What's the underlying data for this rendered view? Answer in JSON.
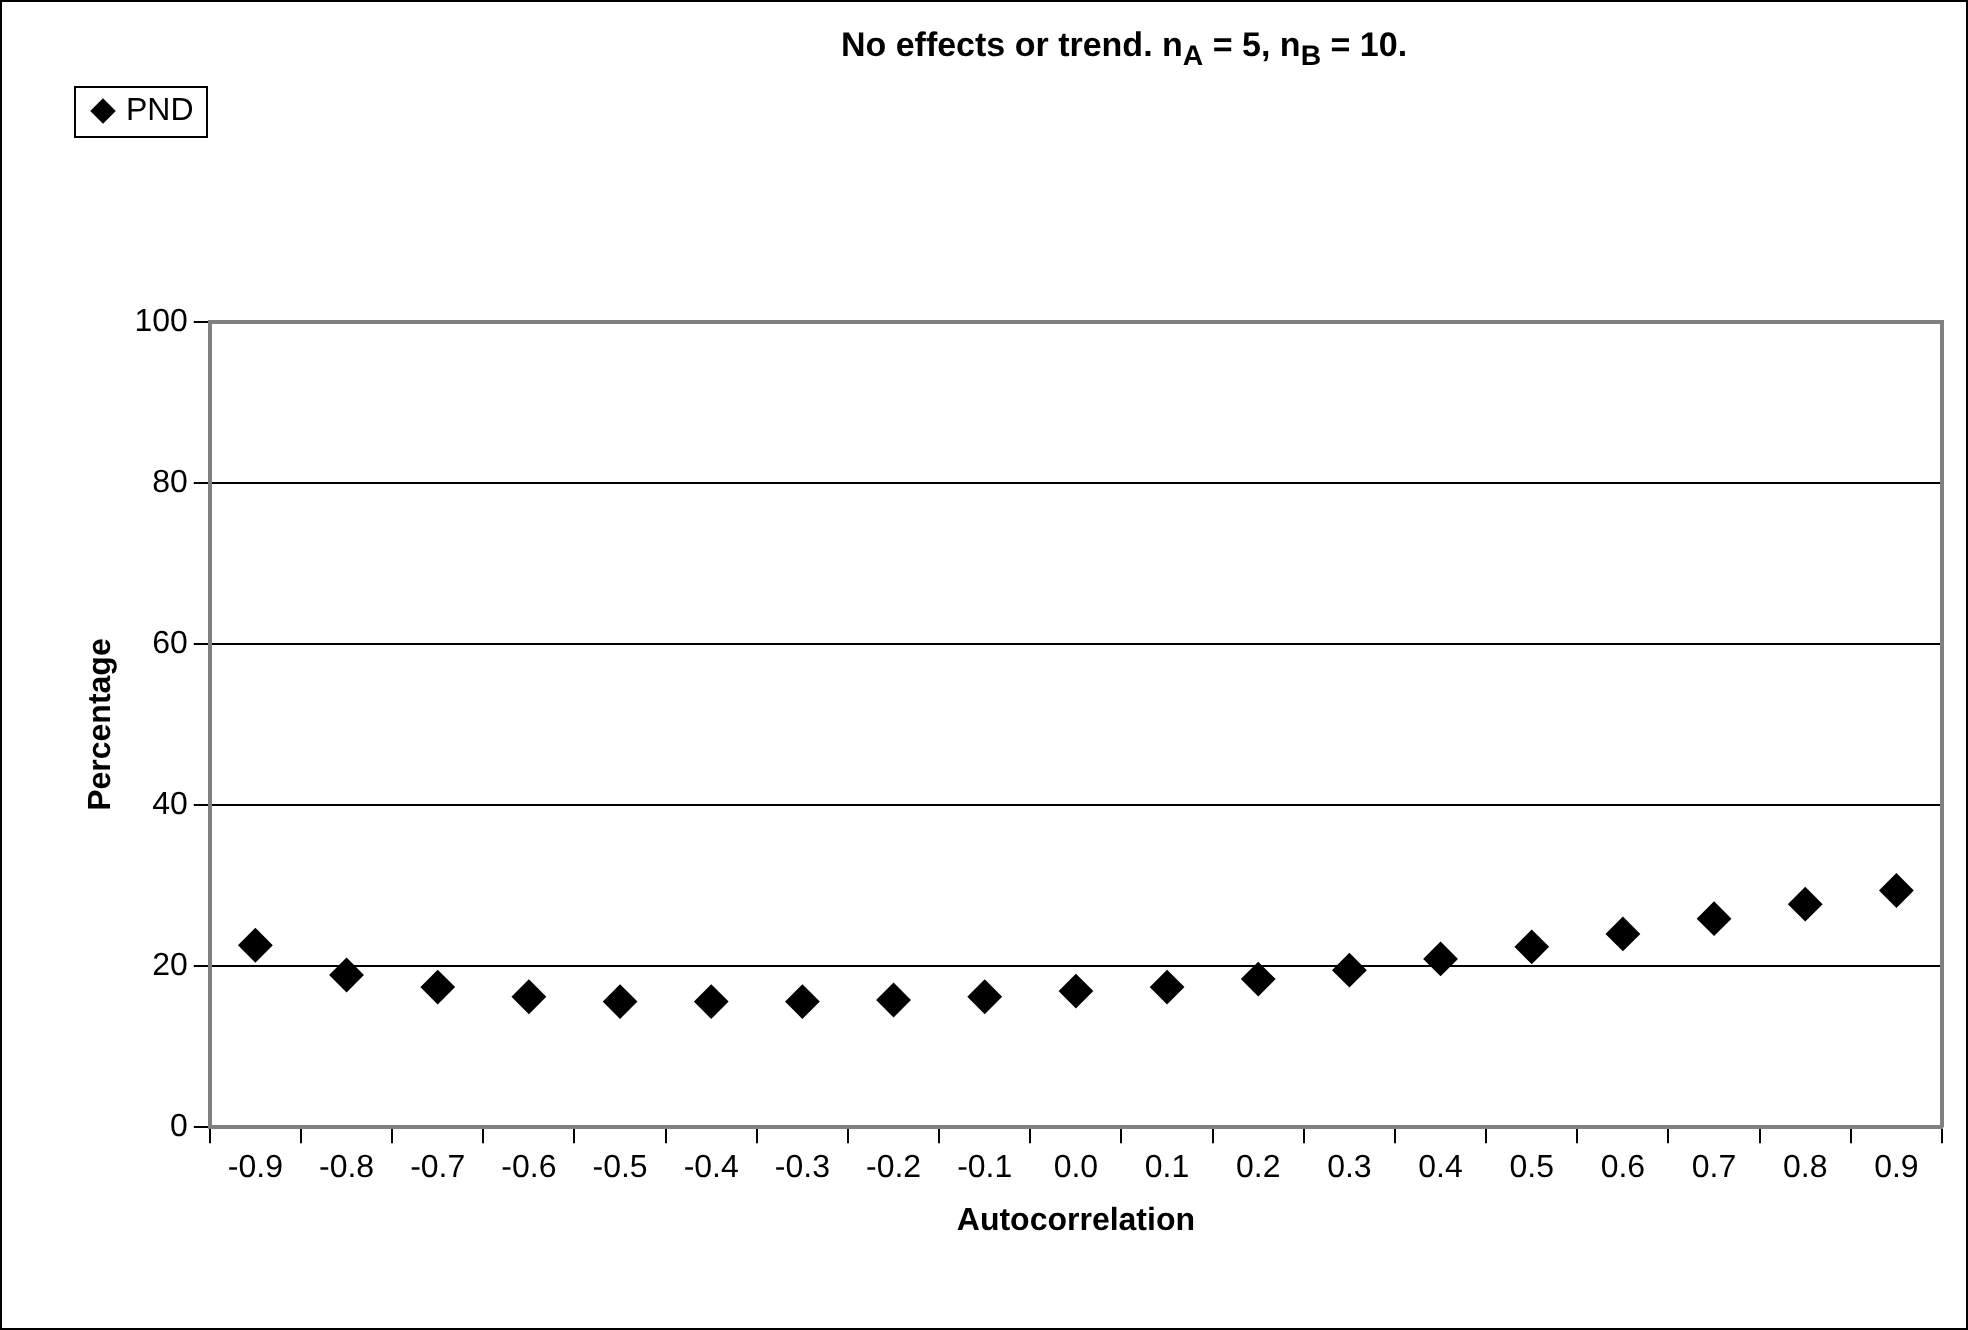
{
  "chart_data": {
    "type": "scatter",
    "title": "No effects or trend. n$_{A}$ = 5, n$_{B}$ = 10.",
    "xlabel": "Autocorrelation",
    "ylabel": "Percentage",
    "categories": [
      "-0.9",
      "-0.8",
      "-0.7",
      "-0.6",
      "-0.5",
      "-0.4",
      "-0.3",
      "-0.2",
      "-0.1",
      "0.0",
      "0.1",
      "0.2",
      "0.3",
      "0.4",
      "0.5",
      "0.6",
      "0.7",
      "0.8",
      "0.9"
    ],
    "series": [
      {
        "name": "PND",
        "color": "#000000",
        "values": [
          22.6,
          18.9,
          17.4,
          16.2,
          15.6,
          15.6,
          15.6,
          15.8,
          16.2,
          16.9,
          17.4,
          18.4,
          19.5,
          20.9,
          22.4,
          24.0,
          25.9,
          27.7,
          29.4
        ]
      }
    ],
    "ylim": [
      0,
      100
    ],
    "yticks": [
      0,
      20,
      40,
      60,
      80,
      100
    ],
    "grid": "y",
    "legend": "top left",
    "marker": "diamond"
  }
}
